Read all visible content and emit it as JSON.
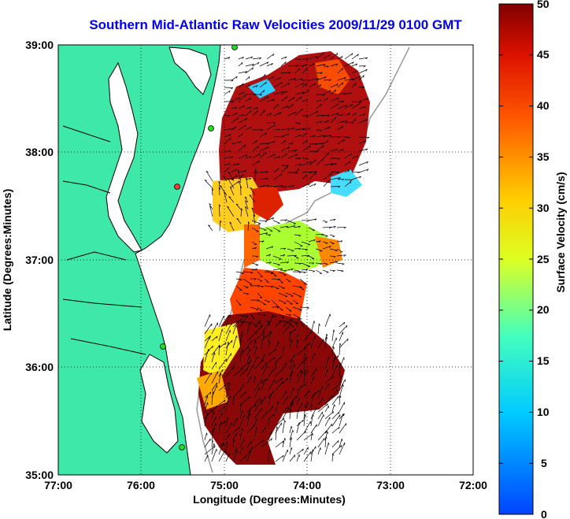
{
  "title": "Southern Mid-Atlantic Raw Velocities 2009/11/29 0100 GMT",
  "x_axis": {
    "label": "Longitude (Degrees:Minutes)",
    "ticks": [
      "77:00",
      "76:00",
      "75:00",
      "74:00",
      "73:00",
      "72:00"
    ],
    "range": [
      -77,
      -72
    ]
  },
  "y_axis": {
    "label": "Latitude (Degrees:Minutes)",
    "ticks": [
      "39:00",
      "38:00",
      "37:00",
      "36:00",
      "35:00"
    ],
    "range": [
      35,
      39
    ]
  },
  "colorbar": {
    "label": "Surface Velocity (cm/s)",
    "ticks": [
      "50",
      "45",
      "40",
      "35",
      "30",
      "25",
      "20",
      "15",
      "10",
      "5",
      "0"
    ],
    "min": 0,
    "max": 50
  },
  "colors": {
    "land": "#3ee8a8",
    "coastline": "#000000",
    "title": "#0000ee",
    "station_active": "#22dd22",
    "station_inactive": "#ff3333",
    "arrows": "#000000"
  },
  "grid": true
}
